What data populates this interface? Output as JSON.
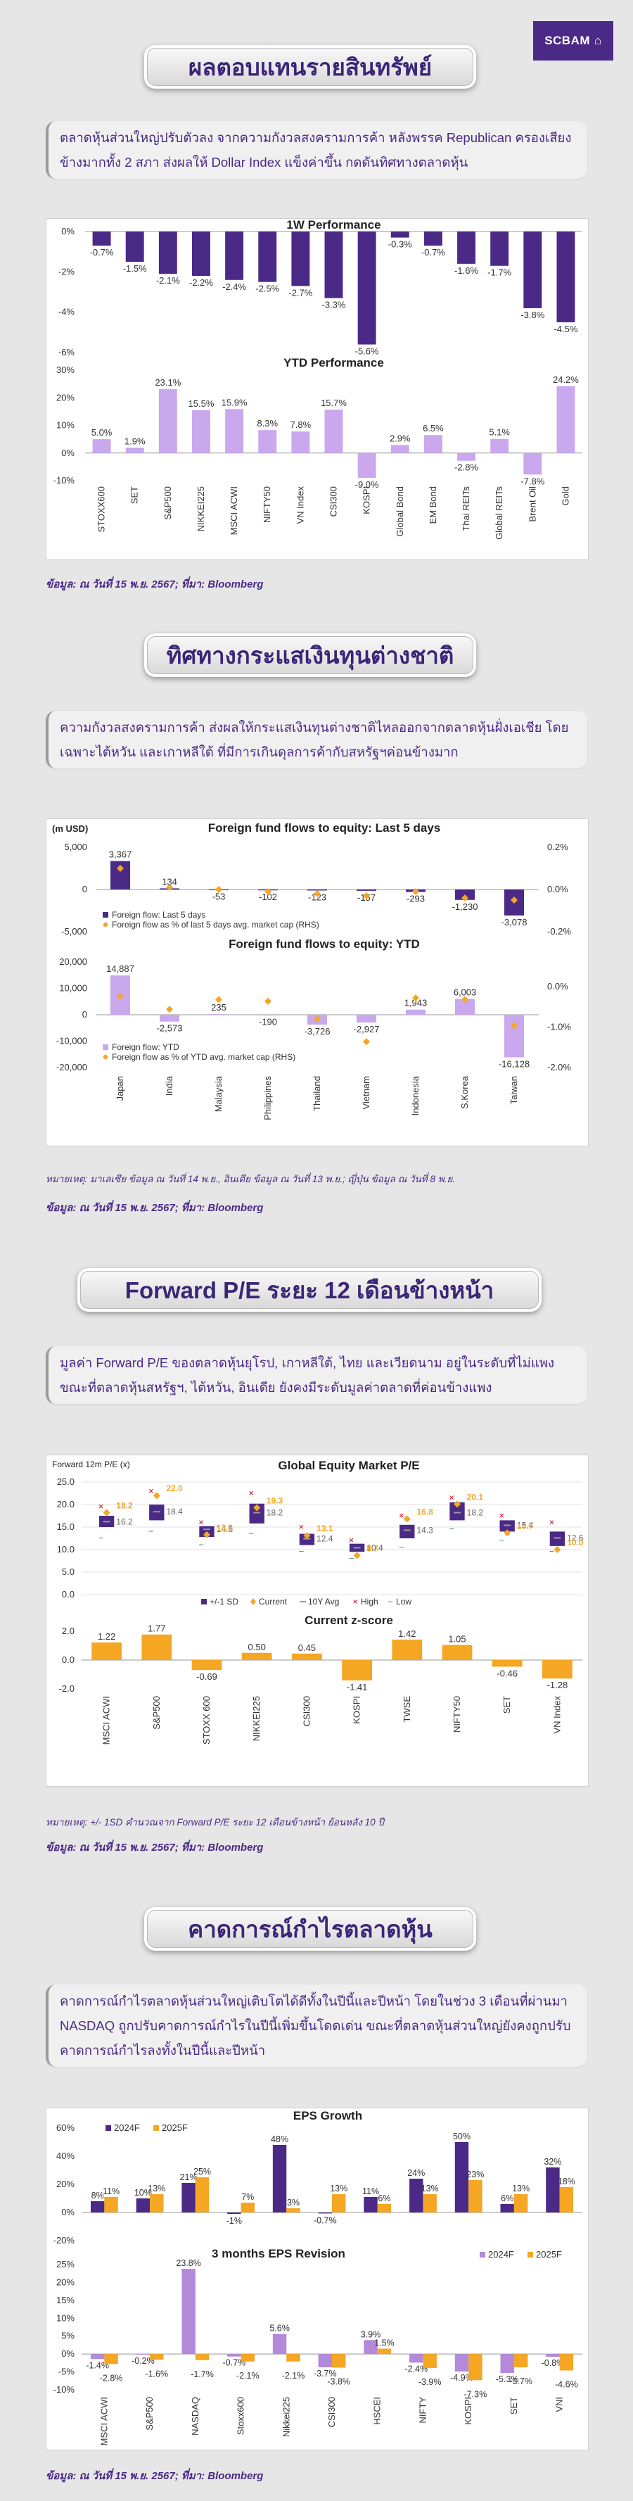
{
  "brand": "SCBAM",
  "sections": {
    "s1": {
      "title": "ผลตอบแทนรายสินทรัพย์",
      "note": "ตลาดหุ้นส่วนใหญ่ปรับตัวลง จากความกังวลสงครามการค้า หลังพรรค Republican ครองเสียงข้างมากทั้ง 2 สภา ส่งผลให้ Dollar Index แข็งค่าขึ้น กดดันทิศทางตลาดหุ้น",
      "source": "ข้อมูล: ณ วันที่ 15 พ.ย. 2567; ที่มา: Bloomberg"
    },
    "s2": {
      "title": "ทิศทางกระแสเงินทุนต่างชาติ",
      "note": "ความกังวลสงครามการค้า ส่งผลให้กระแสเงินทุนต่างชาติไหลออกจากตลาดหุ้นฝั่งเอเชีย โดยเฉพาะไต้หวัน และเกาหลีใต้ ที่มีการเกินดุลการค้ากับสหรัฐฯค่อนข้างมาก",
      "footnote": "หมายเหตุ: มาเลเซีย ข้อมูล ณ วันที่ 14 พ.ย., อินเดีย ข้อมูล ณ วันที่ 13 พ.ย.; ญี่ปุ่น ข้อมูล ณ วันที่ 8 พ.ย.",
      "source": "ข้อมูล: ณ วันที่ 15 พ.ย. 2567; ที่มา: Bloomberg"
    },
    "s3": {
      "title": "Forward P/E ระยะ 12 เดือนข้างหน้า",
      "note": "มูลค่า Forward P/E ของตลาดหุ้นยุโรป, เกาหลีใต้, ไทย และเวียดนาม อยู่ในระดับที่ไม่แพง ขณะที่ตลาดหุ้นสหรัฐฯ, ไต้หวัน, อินเดีย ยังคงมีระดับมูลค่าตลาดที่ค่อนข้างแพง",
      "footnote": "หมายเหตุ: +/- 1SD คำนวณจาก Forward P/E ระยะ 12 เดือนข้างหน้า ย้อนหลัง 10 ปี",
      "source": "ข้อมูล: ณ วันที่ 15 พ.ย. 2567; ที่มา: Bloomberg"
    },
    "s4": {
      "title": "คาดการณ์กำไรตลาดหุ้น",
      "note": "คาดการณ์กำไรตลาดหุ้นส่วนใหญ่เติบโตได้ดีทั้งในปีนี้และปีหน้า โดยในช่วง 3 เดือนที่ผ่านมา NASDAQ ถูกปรับคาดการณ์กำไรในปีนี้เพิ่มขึ้นโดดเด่น ขณะที่ตลาดหุ้นส่วนใหญ่ยังคงถูกปรับคาดการณ์กำไรลงทั้งในปีนี้และปีหน้า",
      "source": "ข้อมูล: ณ วันที่ 15 พ.ย. 2567; ที่มา: Bloomberg"
    }
  },
  "colors": {
    "purple": "#4b2a87",
    "lilac": "#c9a8ee",
    "orange": "#f5a623",
    "lightpurple": "#b38ad9"
  },
  "chart_data": [
    {
      "type": "bar",
      "title": "1W Performance",
      "categories": [
        "STOXX600",
        "SET",
        "S&P500",
        "NIKKEI225",
        "MSCI ACWI",
        "NIFTY50",
        "VN Index",
        "CSI300",
        "KOSPI",
        "Global Bond",
        "EM Bond",
        "Thai REITs",
        "Global REITs",
        "Brent Oil",
        "Gold"
      ],
      "values": [
        -0.7,
        -1.5,
        -2.1,
        -2.2,
        -2.4,
        -2.5,
        -2.7,
        -3.3,
        -5.6,
        -0.3,
        -0.7,
        -1.6,
        -1.7,
        -3.8,
        -4.5
      ],
      "labels": [
        "-0.7%",
        "-1.5%",
        "-2.1%",
        "-2.2%",
        "-2.4%",
        "-2.5%",
        "-2.7%",
        "-3.3%",
        "-5.6%",
        "-0.3%",
        "-0.7%",
        "-1.6%",
        "-1.7%",
        "-3.8%",
        "-4.5%"
      ],
      "yticks": [
        "0%",
        "-2%",
        "-4%",
        "-6%"
      ],
      "ylim": [
        -6,
        0
      ]
    },
    {
      "type": "bar",
      "title": "YTD Performance",
      "categories": [
        "STOXX600",
        "SET",
        "S&P500",
        "NIKKEI225",
        "MSCI ACWI",
        "NIFTY50",
        "VN Index",
        "CSI300",
        "KOSPI",
        "Global Bond",
        "EM Bond",
        "Thai REITs",
        "Global REITs",
        "Brent Oil",
        "Gold"
      ],
      "values": [
        5.0,
        1.9,
        23.1,
        15.5,
        15.9,
        8.3,
        7.8,
        15.7,
        -9.0,
        2.9,
        6.5,
        -2.8,
        5.1,
        -7.8,
        24.2
      ],
      "labels": [
        "5.0%",
        "1.9%",
        "23.1%",
        "15.5%",
        "15.9%",
        "8.3%",
        "7.8%",
        "15.7%",
        "-9.0%",
        "2.9%",
        "6.5%",
        "-2.8%",
        "5.1%",
        "-7.8%",
        "24.2%"
      ],
      "yticks": [
        "30%",
        "20%",
        "10%",
        "0%",
        "-10%"
      ],
      "ylim": [
        -10,
        30
      ]
    },
    {
      "type": "bar",
      "title": "Foreign fund flows to equity: Last 5 days",
      "unit": "(m USD)",
      "categories": [
        "Japan",
        "India",
        "Malaysia",
        "Philippines",
        "Thailand",
        "Vietnam",
        "Indonesia",
        "S.Korea",
        "Taiwan"
      ],
      "values": [
        3367,
        134,
        -53,
        -102,
        -123,
        -157,
        -293,
        -1230,
        -3078
      ],
      "labels": [
        "3,367",
        "134",
        "-53",
        "-102",
        "-123",
        "-157",
        "-293",
        "-1,230",
        "-3,078"
      ],
      "rhs_values": [
        0.1,
        0.01,
        0.0,
        -0.01,
        -0.02,
        -0.03,
        -0.01,
        -0.04,
        -0.05
      ],
      "legend": [
        "Foreign flow: Last 5 days",
        "Foreign flow as % of last 5 days avg. market cap (RHS)"
      ],
      "yticks": [
        "5,000",
        "0",
        "-5,000"
      ],
      "rhs_ticks": [
        "0.2%",
        "0.0%",
        "-0.2%"
      ],
      "ylim": [
        -5000,
        5000
      ],
      "rhs_lim": [
        -0.2,
        0.2
      ]
    },
    {
      "type": "bar",
      "title": "Foreign fund flows to equity: YTD",
      "categories": [
        "Japan",
        "India",
        "Malaysia",
        "Philippines",
        "Thailand",
        "Vietnam",
        "Indonesia",
        "S.Korea",
        "Taiwan"
      ],
      "values": [
        14887,
        -2573,
        235,
        -190,
        -3726,
        -2927,
        1943,
        6003,
        -16128
      ],
      "labels": [
        "14,887",
        "-2,573",
        "235",
        "-190",
        "-3,726",
        "-2,927",
        "1,943",
        "6,003",
        "-16,128"
      ],
      "rhs_values": [
        0.2,
        -0.2,
        0.1,
        0.05,
        -0.5,
        -1.2,
        0.15,
        0.1,
        -0.7
      ],
      "legend": [
        "Foreign flow: YTD",
        "Foreign flow as % of YTD avg. market cap (RHS)"
      ],
      "yticks": [
        "20,000",
        "10,000",
        "0",
        "-10,000",
        "-20,000"
      ],
      "rhs_ticks": [
        "0.0%",
        "-1.0%",
        "-2.0%"
      ],
      "ylim": [
        -20000,
        20000
      ],
      "rhs_lim": [
        -2.0,
        0.5
      ]
    },
    {
      "type": "box",
      "title": "Global Equity Market P/E",
      "ylabel": "Forward 12m P/E (x)",
      "categories": [
        "MSCI ACWI",
        "S&P500",
        "STOXX 600",
        "NIKKEI225",
        "CSI300",
        "KOSPI",
        "TWSE",
        "NIFTY50",
        "SET",
        "VN Index"
      ],
      "sd_low": [
        15.0,
        16.5,
        12.8,
        15.8,
        11.0,
        9.5,
        12.5,
        16.5,
        14.0,
        10.8
      ],
      "sd_high": [
        17.5,
        20.0,
        15.2,
        20.2,
        13.5,
        11.3,
        15.5,
        20.5,
        16.5,
        14.0
      ],
      "avg": [
        16.2,
        18.4,
        14.5,
        18.2,
        12.4,
        10.4,
        14.3,
        18.2,
        15.4,
        12.6
      ],
      "current": [
        18.2,
        22.0,
        13.3,
        19.3,
        13.1,
        8.7,
        16.8,
        20.1,
        13.7,
        10.0
      ],
      "high": [
        19.5,
        23.0,
        16.0,
        22.5,
        15.0,
        12.0,
        17.5,
        21.5,
        17.5,
        16.0
      ],
      "low": [
        12.5,
        14.0,
        11.0,
        13.5,
        9.5,
        8.0,
        10.5,
        14.5,
        12.0,
        9.5
      ],
      "avg_labels": [
        "16.2",
        "18.4",
        "14.5",
        "18.2",
        "12.4",
        "10.4",
        "14.3",
        "18.2",
        "15.4",
        "12.6"
      ],
      "cur_labels": [
        "18.2",
        "22.0",
        "13.3",
        "19.3",
        "13.1",
        "8.7",
        "16.8",
        "20.1",
        "13.7",
        "10.0"
      ],
      "legend": [
        "+/-1 SD",
        "Current",
        "10Y Avg",
        "High",
        "Low"
      ],
      "yticks": [
        "25.0",
        "20.0",
        "15.0",
        "10.0",
        "5.0",
        "0.0"
      ],
      "ylim": [
        0,
        25
      ]
    },
    {
      "type": "bar",
      "title": "Current z-score",
      "categories": [
        "MSCI ACWI",
        "S&P500",
        "STOXX 600",
        "NIKKEI225",
        "CSI300",
        "KOSPI",
        "TWSE",
        "NIFTY50",
        "SET",
        "VN Index"
      ],
      "values": [
        1.22,
        1.77,
        -0.69,
        0.5,
        0.45,
        -1.41,
        1.42,
        1.05,
        -0.46,
        -1.28
      ],
      "labels": [
        "1.22",
        "1.77",
        "-0.69",
        "0.50",
        "0.45",
        "-1.41",
        "1.42",
        "1.05",
        "-0.46",
        "-1.28"
      ],
      "yticks": [
        "2.0",
        "0.0",
        "-2.0"
      ],
      "ylim": [
        -2,
        2
      ]
    },
    {
      "type": "bar",
      "title": "EPS Growth",
      "categories": [
        "MSCI ACWI",
        "S&P500",
        "NASDAQ",
        "Stoxx600",
        "Nikkei225",
        "CSI300",
        "HSCEI",
        "NIFTY",
        "KOSPI",
        "SET",
        "VNI"
      ],
      "series": [
        {
          "name": "2024F",
          "values": [
            8,
            10,
            21,
            -1,
            48,
            -0.7,
            11,
            24,
            50,
            6,
            32
          ],
          "labels": [
            "8%",
            "10%",
            "21%",
            "-1%",
            "48%",
            "-0.7%",
            "11%",
            "24%",
            "50%",
            "6%",
            "32%"
          ]
        },
        {
          "name": "2025F",
          "values": [
            11,
            13,
            25,
            7,
            3,
            13,
            6,
            13,
            23,
            13,
            18
          ],
          "labels": [
            "11%",
            "13%",
            "25%",
            "7%",
            "3%",
            "13%",
            "6%",
            "13%",
            "23%",
            "13%",
            "18%"
          ]
        }
      ],
      "yticks": [
        "60%",
        "40%",
        "20%",
        "0%",
        "-20%"
      ],
      "ylim": [
        -20,
        60
      ]
    },
    {
      "type": "bar",
      "title": "3 months EPS Revision",
      "categories": [
        "MSCI ACWI",
        "S&P500",
        "NASDAQ",
        "Stoxx600",
        "Nikkei225",
        "CSI300",
        "HSCEI",
        "NIFTY",
        "KOSPI",
        "SET",
        "VNI"
      ],
      "series": [
        {
          "name": "2024F",
          "values": [
            -1.4,
            -0.2,
            23.8,
            -0.7,
            5.6,
            -3.7,
            3.9,
            -2.4,
            -4.9,
            -5.3,
            -0.8
          ],
          "labels": [
            "-1.4%",
            "-0.2%",
            "23.8%",
            "-0.7%",
            "5.6%",
            "-3.7%",
            "3.9%",
            "-2.4%",
            "-4.9%",
            "-5.3%",
            "-0.8%"
          ]
        },
        {
          "name": "2025F",
          "values": [
            -2.8,
            -1.6,
            -1.7,
            -2.1,
            -2.1,
            -3.8,
            1.5,
            -3.9,
            -7.3,
            -3.7,
            -4.6
          ],
          "labels": [
            "-2.8%",
            "-1.6%",
            "-1.7%",
            "-2.1%",
            "-2.1%",
            "-3.8%",
            "1.5%",
            "-3.9%",
            "-7.3%",
            "-3.7%",
            "-4.6%"
          ]
        }
      ],
      "yticks": [
        "25%",
        "20%",
        "15%",
        "10%",
        "5%",
        "0%",
        "-5%",
        "-10%"
      ],
      "ylim": [
        -10,
        25
      ]
    }
  ]
}
